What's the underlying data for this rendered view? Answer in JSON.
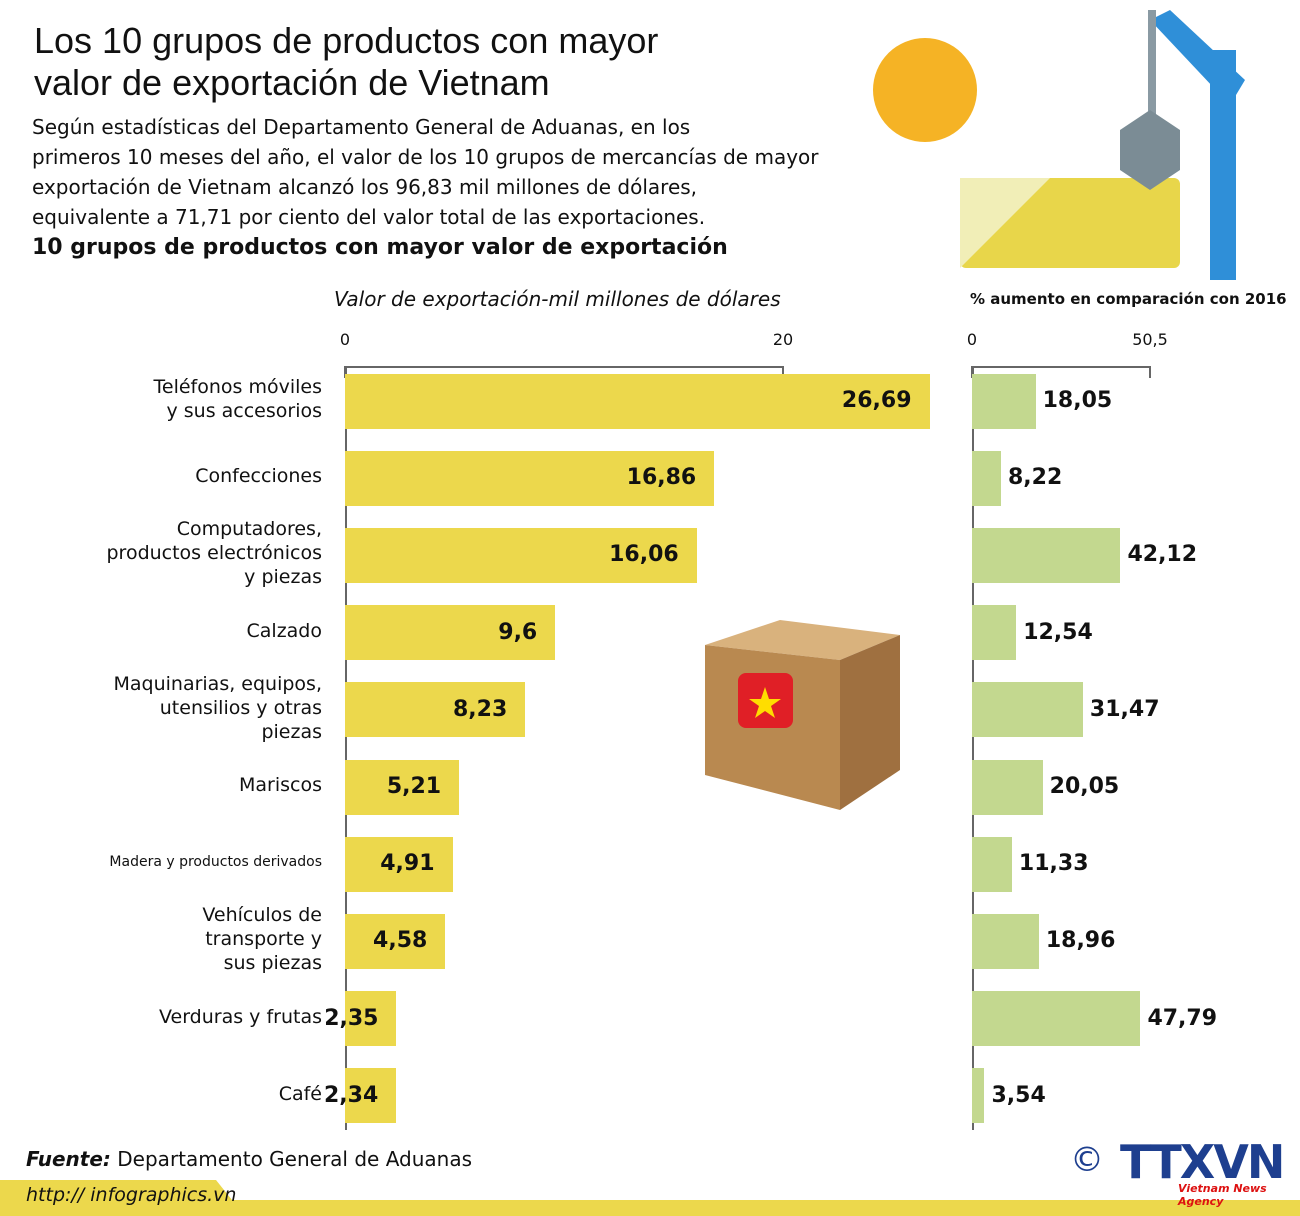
{
  "header": {
    "title": "Los 10 grupos de productos con mayor\nvalor de exportación de Vietnam",
    "description": "Según estadísticas del Departamento General de Aduanas, en los\nprimeros 10 meses del año, el valor de los 10 grupos de mercancías de mayor\nexportación de Vietnam alcanzó los 96,83 mil millones de dólares,\nequivalente a 71,71 por ciento del valor total de las exportaciones.",
    "subtitle": "10 grupos de productos con mayor valor de exportación"
  },
  "chart_data": [
    {
      "type": "bar",
      "orientation": "horizontal",
      "axis_label": "Valor de exportación-mil millones de dólares",
      "categories": [
        "Teléfonos móviles\ny sus accesorios",
        "Confecciones",
        "Computadores,\nproductos electrónicos\ny piezas",
        "Calzado",
        "Maquinarias, equipos,\nutensilios y otras\npiezas",
        "Mariscos",
        "Madera y productos derivados",
        "Vehículos de\ntransporte y\nsus piezas",
        "Verduras y frutas",
        "Café"
      ],
      "values": [
        26.69,
        16.86,
        16.06,
        9.6,
        8.23,
        5.21,
        4.91,
        4.58,
        2.35,
        2.34
      ],
      "value_labels": [
        "26,69",
        "16,86",
        "16,06",
        "9,6",
        "8,23",
        "5,21",
        "4,91",
        "4,58",
        "2,35",
        "2,34"
      ],
      "color": "#ecd84c",
      "xlim": [
        0,
        20
      ],
      "xticks": [
        0,
        20
      ]
    },
    {
      "type": "bar",
      "orientation": "horizontal",
      "axis_label": "% aumento en comparación con 2016",
      "values": [
        18.05,
        8.22,
        42.12,
        12.54,
        31.47,
        20.05,
        11.33,
        18.96,
        47.79,
        3.54
      ],
      "value_labels": [
        "18,05",
        "8,22",
        "42,12",
        "12,54",
        "31,47",
        "20,05",
        "11,33",
        "18,96",
        "47,79",
        "3,54"
      ],
      "color": "#c3d88f",
      "xlim": [
        0,
        50.5
      ],
      "xticks": [
        0,
        {
          "value": 50.5,
          "label": "50,5"
        }
      ]
    }
  ],
  "footer": {
    "source_label": "Fuente:",
    "source": "Departamento General de Aduanas",
    "url": "http:// infographics.vn",
    "copyright": "©",
    "logo": "TTXVN",
    "agency": "Vietnam News Agency"
  }
}
